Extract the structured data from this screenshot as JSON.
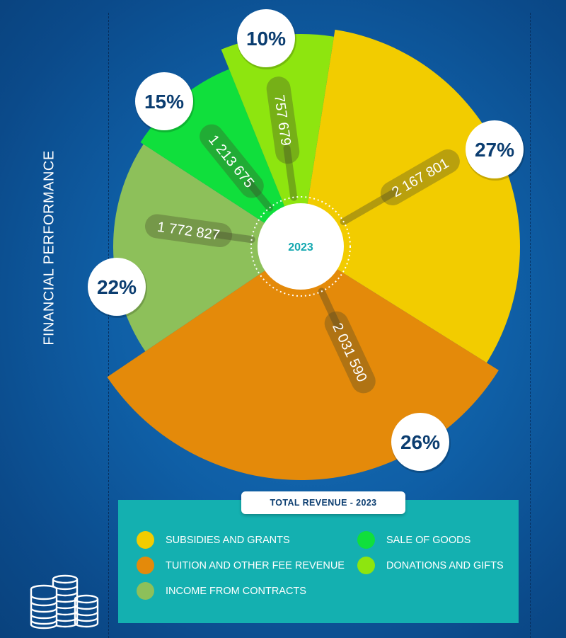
{
  "side_title": "FINANCIAL PERFORMANCE",
  "center_label": "2023",
  "legend_title": "TOTAL REVENUE - 2023",
  "chart_data": {
    "type": "pie",
    "title": "TOTAL REVENUE - 2023",
    "center_label": "2023",
    "categories": [
      "SUBSIDIES AND GRANTS",
      "TUITION AND OTHER FEE REVENUE",
      "INCOME FROM CONTRACTS",
      "SALE OF GOODS",
      "DONATIONS AND GIFTS"
    ],
    "values": [
      2167801,
      2031590,
      1772827,
      1213675,
      757679
    ],
    "value_labels": [
      "2 167 801",
      "2 031 590",
      "1 772 827",
      "1 213 675",
      "757 679"
    ],
    "percent_labels": [
      "27%",
      "26%",
      "22%",
      "15%",
      "10%"
    ],
    "colors": [
      "#f2cc00",
      "#e48a0a",
      "#8dc05a",
      "#10df3c",
      "#8ee50f"
    ],
    "legend_placement": "bottom"
  },
  "legend": [
    {
      "label": "SUBSIDIES AND GRANTS",
      "color": "#f2cc00"
    },
    {
      "label": "TUITION AND OTHER FEE REVENUE",
      "color": "#e48a0a"
    },
    {
      "label": "INCOME FROM CONTRACTS",
      "color": "#8dc05a"
    },
    {
      "label": "SALE OF GOODS",
      "color": "#10df3c"
    },
    {
      "label": "DONATIONS AND GIFTS",
      "color": "#8ee50f"
    }
  ],
  "icons": {
    "coins": "coin-stack-icon"
  },
  "colors": {
    "background": "#0f5fa6",
    "legend_panel": "#14b0b0",
    "percent_text": "#0b3d70",
    "center_text": "#14a8b0"
  }
}
